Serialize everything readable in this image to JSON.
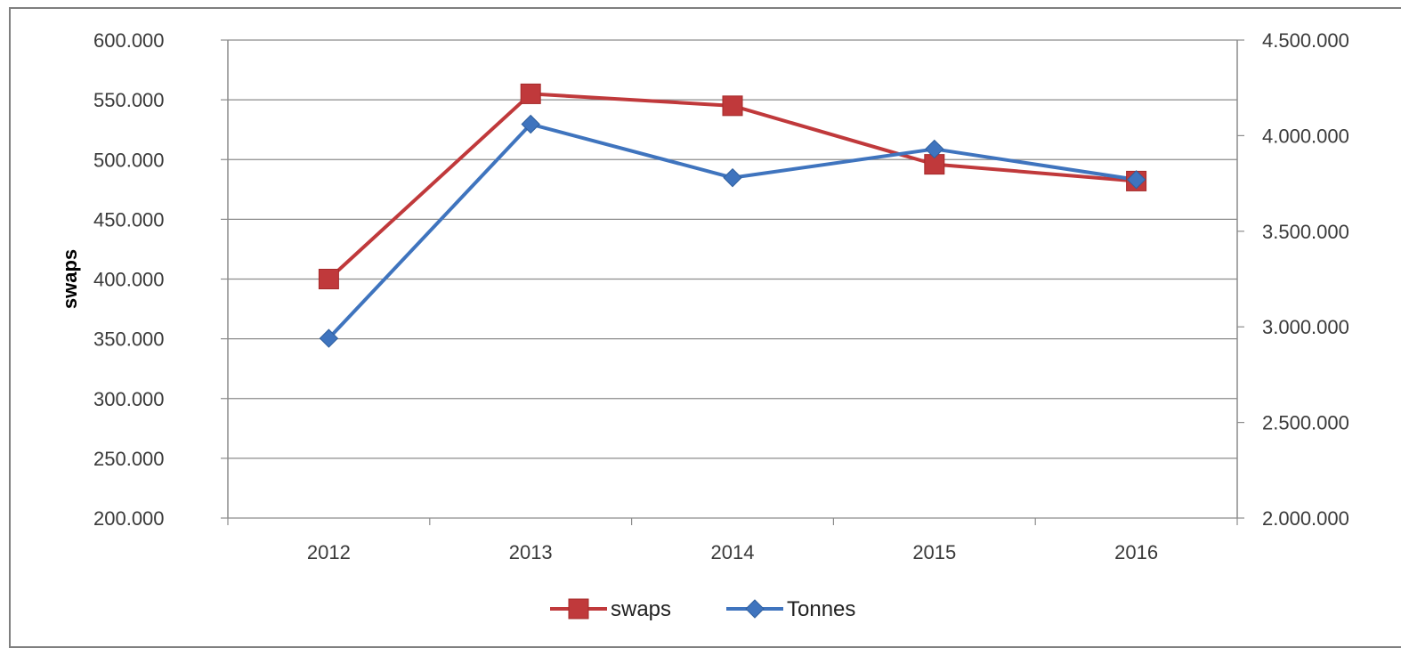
{
  "chart_data": {
    "type": "line",
    "categories": [
      "2012",
      "2013",
      "2014",
      "2015",
      "2016"
    ],
    "ylabel": "swaps",
    "y_left": {
      "min": 200000,
      "max": 600000,
      "step": 50000,
      "tick_labels": [
        "200.000",
        "250.000",
        "300.000",
        "350.000",
        "400.000",
        "450.000",
        "500.000",
        "550.000",
        "600.000"
      ]
    },
    "y_right": {
      "min": 2000000,
      "max": 4500000,
      "step": 500000,
      "tick_labels": [
        "2.000.000",
        "2.500.000",
        "3.000.000",
        "3.500.000",
        "4.000.000",
        "4.500.000"
      ]
    },
    "series": [
      {
        "name": "swaps",
        "axis": "left",
        "color": "#c0393b",
        "marker": "square",
        "values": [
          400000,
          555000,
          545000,
          496000,
          482000
        ]
      },
      {
        "name": "Tonnes",
        "axis": "right",
        "color": "#3f74be",
        "marker": "diamond",
        "values": [
          2940000,
          4060000,
          3780000,
          3930000,
          3770000
        ]
      }
    ],
    "grid": true,
    "legend_position": "bottom"
  }
}
